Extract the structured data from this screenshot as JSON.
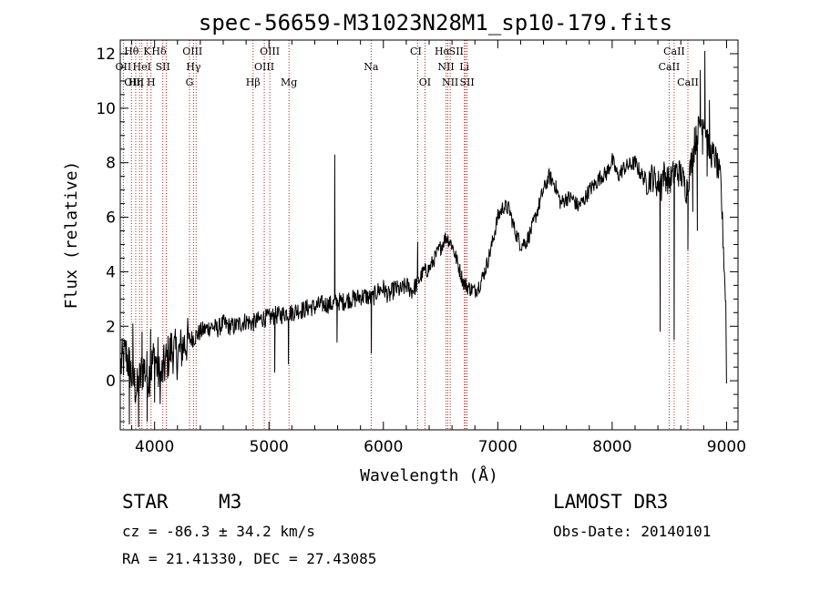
{
  "chart_data": {
    "type": "line",
    "title": "spec-56659-M31023N28M1_sp10-179.fits",
    "xlabel": "Wavelength (Å)",
    "ylabel": "Flux (relative)",
    "xlim": [
      3700,
      9100
    ],
    "ylim": [
      -1.8,
      12.5
    ],
    "xticks": [
      4000,
      5000,
      6000,
      7000,
      8000,
      9000
    ],
    "yticks": [
      0,
      2,
      4,
      6,
      8,
      10,
      12
    ],
    "line_color": "#000000",
    "marker_color": "#b22222",
    "x": [
      3700,
      3750,
      3800,
      3850,
      3900,
      3950,
      4000,
      4050,
      4100,
      4150,
      4200,
      4250,
      4300,
      4350,
      4400,
      4450,
      4500,
      4550,
      4600,
      4650,
      4700,
      4750,
      4800,
      4850,
      4900,
      4950,
      5000,
      5050,
      5100,
      5150,
      5200,
      5250,
      5300,
      5350,
      5400,
      5450,
      5500,
      5550,
      5600,
      5650,
      5700,
      5750,
      5800,
      5850,
      5900,
      5950,
      6000,
      6050,
      6100,
      6150,
      6200,
      6250,
      6300,
      6350,
      6400,
      6450,
      6500,
      6550,
      6600,
      6650,
      6700,
      6750,
      6800,
      6850,
      6900,
      6950,
      7000,
      7050,
      7100,
      7150,
      7200,
      7250,
      7300,
      7350,
      7400,
      7450,
      7500,
      7550,
      7600,
      7650,
      7700,
      7750,
      7800,
      7850,
      7900,
      7950,
      8000,
      8050,
      8100,
      8150,
      8200,
      8250,
      8300,
      8350,
      8400,
      8450,
      8500,
      8550,
      8600,
      8650,
      8700,
      8750,
      8800,
      8850,
      8900,
      8950,
      9000
    ],
    "y": [
      0.5,
      1.0,
      0.2,
      -0.4,
      0.5,
      0.2,
      0.9,
      0.0,
      0.7,
      1.2,
      0.9,
      1.3,
      1.5,
      1.6,
      1.8,
      1.9,
      2.0,
      1.9,
      2.1,
      2.0,
      2.0,
      2.1,
      2.2,
      2.1,
      2.2,
      2.3,
      2.3,
      2.4,
      2.4,
      2.5,
      2.5,
      2.6,
      2.6,
      2.7,
      2.7,
      2.8,
      2.8,
      2.8,
      2.9,
      2.9,
      3.0,
      3.0,
      3.1,
      3.1,
      3.0,
      3.3,
      3.4,
      3.1,
      3.4,
      3.3,
      3.5,
      3.3,
      3.6,
      4.0,
      4.1,
      4.5,
      4.9,
      5.3,
      5.0,
      4.3,
      3.6,
      3.4,
      3.3,
      3.6,
      4.2,
      5.0,
      6.0,
      6.4,
      6.3,
      5.5,
      5.0,
      5.1,
      5.6,
      6.3,
      7.0,
      7.5,
      7.2,
      6.5,
      6.7,
      6.7,
      6.4,
      6.6,
      7.0,
      7.2,
      7.5,
      7.6,
      8.1,
      7.5,
      7.8,
      7.9,
      8.0,
      7.6,
      7.3,
      7.5,
      7.2,
      7.6,
      7.3,
      7.7,
      7.6,
      7.0,
      8.2,
      9.2,
      9.7,
      8.4,
      8.2,
      7.3,
      2.0
    ],
    "spikes": [
      [
        3780,
        -1.6
      ],
      [
        3810,
        2.1
      ],
      [
        3860,
        -1.7
      ],
      [
        3890,
        1.8
      ],
      [
        3935,
        -1.5
      ],
      [
        3965,
        1.9
      ],
      [
        4000,
        -0.8
      ],
      [
        4030,
        1.6
      ],
      [
        5050,
        0.3
      ],
      [
        5170,
        0.6
      ],
      [
        5575,
        8.3
      ],
      [
        5595,
        1.4
      ],
      [
        5895,
        1.0
      ],
      [
        6300,
        5.1
      ],
      [
        6320,
        3.7
      ],
      [
        8420,
        1.8
      ],
      [
        8430,
        6.6
      ],
      [
        8542,
        1.5
      ],
      [
        8662,
        4.8
      ],
      [
        8690,
        7.9
      ],
      [
        8705,
        6.2
      ],
      [
        8720,
        9.3
      ],
      [
        8745,
        5.5
      ],
      [
        8770,
        11.4
      ],
      [
        8790,
        8.3
      ],
      [
        8810,
        12.1
      ],
      [
        8830,
        7.5
      ],
      [
        8850,
        10.3
      ],
      [
        8875,
        8.6
      ],
      [
        9000,
        -0.1
      ]
    ],
    "line_markers": [
      {
        "label": "Hθ",
        "x": 3798,
        "row": 1,
        "dx": 0
      },
      {
        "label": "K",
        "x": 3934,
        "row": 1,
        "dx": 0
      },
      {
        "label": "Hδ",
        "x": 4102,
        "row": 1,
        "dx": -8
      },
      {
        "label": "OIII",
        "x": 4363,
        "row": 1,
        "dx": -4
      },
      {
        "label": "OIII",
        "x": 5007,
        "row": 1,
        "dx": 0
      },
      {
        "label": "CI",
        "x": 6300,
        "row": 1,
        "dx": -2
      },
      {
        "label": "Hα",
        "x": 6563,
        "row": 1,
        "dx": -6
      },
      {
        "label": "SII",
        "x": 6717,
        "row": 1,
        "dx": -10
      },
      {
        "label": "CaII",
        "x": 8542,
        "row": 1,
        "dx": 0
      },
      {
        "label": "OII",
        "x": 3727,
        "row": 2,
        "dx": 0
      },
      {
        "label": "HeI",
        "x": 3889,
        "row": 2,
        "dx": 0
      },
      {
        "label": "SII",
        "x": 4072,
        "row": 2,
        "dx": 0
      },
      {
        "label": "Hγ",
        "x": 4340,
        "row": 2,
        "dx": 0
      },
      {
        "label": "OIII",
        "x": 4959,
        "row": 2,
        "dx": 0
      },
      {
        "label": "Na",
        "x": 5893,
        "row": 2,
        "dx": 0
      },
      {
        "label": "NII",
        "x": 6548,
        "row": 2,
        "dx": 0
      },
      {
        "label": "Li",
        "x": 6708,
        "row": 2,
        "dx": 0
      },
      {
        "label": "CaII",
        "x": 8498,
        "row": 2,
        "dx": 0
      },
      {
        "label": "OIII",
        "x": 3869,
        "row": 3,
        "dx": -6
      },
      {
        "label": "Hη",
        "x": 3835,
        "row": 3,
        "dx": 0
      },
      {
        "label": "H",
        "x": 3969,
        "row": 3,
        "dx": 0
      },
      {
        "label": "G",
        "x": 4305,
        "row": 3,
        "dx": 0
      },
      {
        "label": "Hβ",
        "x": 4861,
        "row": 3,
        "dx": 0
      },
      {
        "label": "Mg",
        "x": 5175,
        "row": 3,
        "dx": 0
      },
      {
        "label": "OI",
        "x": 6364,
        "row": 3,
        "dx": 0
      },
      {
        "label": "NII",
        "x": 6584,
        "row": 3,
        "dx": 0
      },
      {
        "label": "SII",
        "x": 6731,
        "row": 3,
        "dx": 0
      },
      {
        "label": "CaII",
        "x": 8662,
        "row": 3,
        "dx": 0
      }
    ]
  },
  "info": {
    "class": "STAR",
    "subclass": "M3",
    "survey": "LAMOST DR3",
    "cz": "cz = -86.3 ± 34.2 km/s",
    "obs_date": "Obs-Date: 20140101",
    "coords": "RA =  21.41330, DEC =  27.43085"
  }
}
